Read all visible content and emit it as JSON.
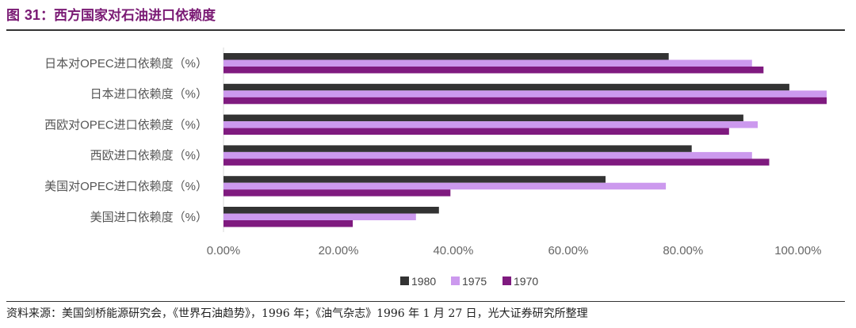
{
  "figure": {
    "title_prefix": "图 ",
    "title_number": "31",
    "title_text": "：西方国家对石油进口依赖度",
    "source": "资料来源：美国剑桥能源研究会，《世界石油趋势》，1996 年；《油气杂志》1996 年 1 月 27 日，光大证券研究所整理"
  },
  "colors": {
    "title": "#7a1a74",
    "s1980": "#333333",
    "s1975": "#cc99ee",
    "s1970": "#7f1a7f"
  },
  "chart_data": {
    "type": "bar",
    "orientation": "horizontal",
    "categories": [
      "日本对OPEC进口依赖度（%）",
      "日本进口依赖度（%）",
      "西欧对OPEC进口依赖度（%）",
      "西欧进口依赖度（%）",
      "美国对OPEC进口依赖度（%）",
      "美国进口依赖度（%）"
    ],
    "series": [
      {
        "name": "1980",
        "color": "#333333",
        "values": [
          77.5,
          98.5,
          90.5,
          81.5,
          66.5,
          37.5
        ]
      },
      {
        "name": "1975",
        "color": "#cc99ee",
        "values": [
          92,
          105,
          93,
          92,
          77,
          33.5
        ]
      },
      {
        "name": "1970",
        "color": "#7f1a7f",
        "values": [
          94,
          105,
          88,
          95,
          39.5,
          22.5
        ]
      }
    ],
    "xlim": [
      0,
      105
    ],
    "xticks": [
      0,
      20,
      40,
      60,
      80,
      100
    ],
    "xtick_labels": [
      "0.00%",
      "20.00%",
      "40.00%",
      "60.00%",
      "80.00%",
      "100.00%"
    ],
    "legend_order": [
      "1980",
      "1975",
      "1970"
    ],
    "legend_position": "bottom",
    "grid": false
  }
}
